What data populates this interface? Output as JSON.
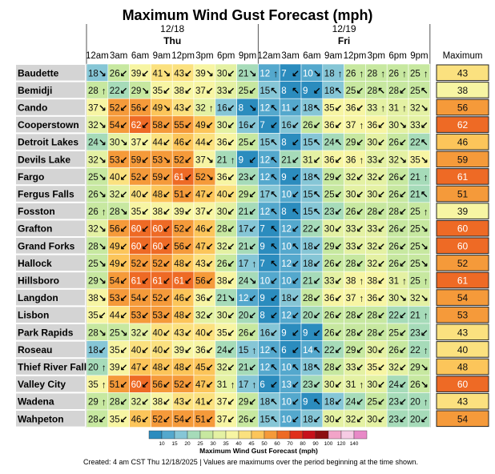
{
  "chart_data": {
    "type": "heatmap",
    "title": "Maximum Wind Gust Forecast (mph)",
    "days": [
      {
        "date": "12/18",
        "weekday": "Thu"
      },
      {
        "date": "12/19",
        "weekday": "Fri"
      }
    ],
    "times": [
      "12am",
      "3am",
      "6am",
      "9am",
      "12pm",
      "3pm",
      "6pm",
      "9pm",
      "12am",
      "3am",
      "6am",
      "9am",
      "12pm",
      "3pm",
      "6pm",
      "9pm"
    ],
    "max_header": "Maximum",
    "rows": [
      {
        "location": "Baudette",
        "values": [
          18,
          26,
          39,
          41,
          43,
          39,
          30,
          21,
          12,
          7,
          10,
          18,
          26,
          28,
          26,
          25
        ],
        "dirs": [
          "se",
          "sw",
          "sw",
          "se",
          "sw",
          "se",
          "sw",
          "se",
          "n",
          "sw",
          "se",
          "n",
          "n",
          "n",
          "n",
          "n"
        ],
        "max": 43
      },
      {
        "location": "Bemidji",
        "values": [
          28,
          22,
          29,
          35,
          38,
          37,
          33,
          25,
          15,
          8,
          9,
          18,
          25,
          28,
          28,
          25
        ],
        "dirs": [
          "n",
          "sw",
          "se",
          "sw",
          "sw",
          "sw",
          "sw",
          "sw",
          "nw",
          "nw",
          "sw",
          "nw",
          "sw",
          "nw",
          "sw",
          "nw"
        ],
        "max": 38
      },
      {
        "location": "Cando",
        "values": [
          37,
          52,
          56,
          49,
          43,
          32,
          16,
          8,
          12,
          11,
          18,
          35,
          36,
          33,
          31,
          32
        ],
        "dirs": [
          "se",
          "sw",
          "sw",
          "se",
          "sw",
          "n",
          "sw",
          "se",
          "nw",
          "sw",
          "nw",
          "sw",
          "sw",
          "n",
          "n",
          "se"
        ],
        "max": 56
      },
      {
        "location": "Cooperstown",
        "values": [
          32,
          54,
          62,
          58,
          55,
          49,
          30,
          16,
          7,
          16,
          26,
          36,
          37,
          36,
          30,
          33
        ],
        "dirs": [
          "se",
          "sw",
          "sw",
          "sw",
          "sw",
          "sw",
          "sw",
          "sw",
          "sw",
          "sw",
          "sw",
          "sw",
          "n",
          "sw",
          "se",
          "sw"
        ],
        "max": 62
      },
      {
        "location": "Detroit Lakes",
        "values": [
          24,
          30,
          37,
          44,
          46,
          44,
          36,
          25,
          15,
          8,
          15,
          24,
          29,
          30,
          26,
          22
        ],
        "dirs": [
          "se",
          "se",
          "sw",
          "sw",
          "sw",
          "sw",
          "sw",
          "sw",
          "nw",
          "sw",
          "nw",
          "nw",
          "sw",
          "sw",
          "sw",
          "nw"
        ],
        "max": 46
      },
      {
        "location": "Devils Lake",
        "values": [
          32,
          53,
          59,
          53,
          52,
          37,
          21,
          9,
          12,
          21,
          31,
          36,
          36,
          33,
          32,
          35
        ],
        "dirs": [
          "se",
          "sw",
          "sw",
          "se",
          "sw",
          "se",
          "n",
          "sw",
          "nw",
          "sw",
          "sw",
          "sw",
          "n",
          "sw",
          "se",
          "se"
        ],
        "max": 59
      },
      {
        "location": "Fargo",
        "values": [
          25,
          40,
          52,
          59,
          61,
          52,
          36,
          23,
          12,
          9,
          18,
          29,
          32,
          32,
          26,
          21
        ],
        "dirs": [
          "se",
          "sw",
          "sw",
          "sw",
          "sw",
          "se",
          "sw",
          "sw",
          "nw",
          "sw",
          "nw",
          "sw",
          "sw",
          "sw",
          "sw",
          "n"
        ],
        "max": 61
      },
      {
        "location": "Fergus Falls",
        "values": [
          26,
          32,
          40,
          48,
          51,
          47,
          40,
          29,
          17,
          10,
          15,
          25,
          30,
          30,
          26,
          21
        ],
        "dirs": [
          "se",
          "sw",
          "sw",
          "sw",
          "sw",
          "sw",
          "sw",
          "sw",
          "nw",
          "sw",
          "nw",
          "sw",
          "sw",
          "sw",
          "sw",
          "nw"
        ],
        "max": 51
      },
      {
        "location": "Fosston",
        "values": [
          26,
          28,
          35,
          38,
          39,
          37,
          30,
          21,
          12,
          8,
          15,
          23,
          26,
          28,
          28,
          25
        ],
        "dirs": [
          "n",
          "se",
          "sw",
          "sw",
          "sw",
          "sw",
          "sw",
          "sw",
          "nw",
          "nw",
          "nw",
          "sw",
          "sw",
          "sw",
          "sw",
          "n"
        ],
        "max": 39
      },
      {
        "location": "Grafton",
        "values": [
          32,
          56,
          60,
          60,
          52,
          46,
          28,
          17,
          7,
          12,
          22,
          30,
          33,
          33,
          26,
          25
        ],
        "dirs": [
          "se",
          "sw",
          "sw",
          "sw",
          "sw",
          "sw",
          "sw",
          "sw",
          "nw",
          "sw",
          "sw",
          "sw",
          "sw",
          "sw",
          "sw",
          "se"
        ],
        "max": 60
      },
      {
        "location": "Grand Forks",
        "values": [
          28,
          49,
          60,
          60,
          56,
          47,
          32,
          21,
          9,
          10,
          18,
          29,
          33,
          32,
          26,
          25
        ],
        "dirs": [
          "se",
          "sw",
          "sw",
          "sw",
          "sw",
          "sw",
          "sw",
          "sw",
          "nw",
          "nw",
          "sw",
          "sw",
          "sw",
          "sw",
          "sw",
          "se"
        ],
        "max": 60
      },
      {
        "location": "Hallock",
        "values": [
          25,
          49,
          52,
          52,
          48,
          43,
          26,
          17,
          7,
          12,
          18,
          26,
          28,
          32,
          26,
          25
        ],
        "dirs": [
          "se",
          "sw",
          "sw",
          "sw",
          "sw",
          "sw",
          "sw",
          "n",
          "nw",
          "sw",
          "sw",
          "sw",
          "sw",
          "sw",
          "sw",
          "se"
        ],
        "max": 52
      },
      {
        "location": "Hillsboro",
        "values": [
          29,
          54,
          61,
          61,
          61,
          56,
          38,
          24,
          10,
          10,
          21,
          33,
          38,
          38,
          31,
          25
        ],
        "dirs": [
          "se",
          "sw",
          "sw",
          "sw",
          "sw",
          "sw",
          "sw",
          "se",
          "sw",
          "sw",
          "sw",
          "sw",
          "n",
          "sw",
          "n",
          "n"
        ],
        "max": 61
      },
      {
        "location": "Langdon",
        "values": [
          38,
          53,
          54,
          52,
          46,
          36,
          21,
          12,
          9,
          18,
          28,
          36,
          37,
          36,
          30,
          32
        ],
        "dirs": [
          "se",
          "sw",
          "sw",
          "sw",
          "sw",
          "sw",
          "se",
          "sw",
          "sw",
          "sw",
          "sw",
          "sw",
          "n",
          "sw",
          "se",
          "se"
        ],
        "max": 54
      },
      {
        "location": "Lisbon",
        "values": [
          35,
          44,
          53,
          53,
          48,
          32,
          30,
          20,
          8,
          12,
          20,
          26,
          28,
          28,
          22,
          21
        ],
        "dirs": [
          "sw",
          "sw",
          "sw",
          "sw",
          "sw",
          "sw",
          "sw",
          "sw",
          "sw",
          "sw",
          "sw",
          "sw",
          "sw",
          "sw",
          "sw",
          "n"
        ],
        "max": 53
      },
      {
        "location": "Park Rapids",
        "values": [
          28,
          25,
          32,
          40,
          43,
          40,
          35,
          26,
          16,
          9,
          9,
          26,
          28,
          28,
          25,
          23
        ],
        "dirs": [
          "se",
          "se",
          "sw",
          "sw",
          "sw",
          "sw",
          "sw",
          "sw",
          "sw",
          "sw",
          "sw",
          "sw",
          "sw",
          "sw",
          "sw",
          "sw"
        ],
        "max": 43
      },
      {
        "location": "Roseau",
        "values": [
          18,
          35,
          40,
          40,
          39,
          36,
          24,
          15,
          12,
          6,
          14,
          22,
          29,
          30,
          26,
          22
        ],
        "dirs": [
          "sw",
          "sw",
          "sw",
          "sw",
          "sw",
          "sw",
          "sw",
          "n",
          "nw",
          "sw",
          "nw",
          "sw",
          "sw",
          "sw",
          "sw",
          "n"
        ],
        "max": 40
      },
      {
        "location": "Thief River Falls",
        "values": [
          20,
          39,
          47,
          48,
          48,
          45,
          32,
          21,
          12,
          10,
          18,
          28,
          33,
          35,
          32,
          29
        ],
        "dirs": [
          "n",
          "sw",
          "sw",
          "sw",
          "sw",
          "sw",
          "sw",
          "sw",
          "nw",
          "nw",
          "nw",
          "sw",
          "sw",
          "sw",
          "sw",
          "se"
        ],
        "max": 48
      },
      {
        "location": "Valley City",
        "values": [
          35,
          51,
          60,
          56,
          52,
          47,
          31,
          17,
          6,
          13,
          23,
          30,
          31,
          30,
          24,
          26
        ],
        "dirs": [
          "n",
          "sw",
          "sw",
          "sw",
          "sw",
          "sw",
          "n",
          "n",
          "sw",
          "sw",
          "sw",
          "sw",
          "n",
          "sw",
          "sw",
          "se"
        ],
        "max": 60
      },
      {
        "location": "Wadena",
        "values": [
          29,
          28,
          32,
          38,
          43,
          41,
          37,
          29,
          18,
          10,
          9,
          18,
          24,
          25,
          23,
          20
        ],
        "dirs": [
          "n",
          "sw",
          "sw",
          "sw",
          "sw",
          "sw",
          "sw",
          "sw",
          "nw",
          "sw",
          "nw",
          "sw",
          "sw",
          "sw",
          "sw",
          "n"
        ],
        "max": 43
      },
      {
        "location": "Wahpeton",
        "values": [
          28,
          35,
          46,
          52,
          54,
          51,
          37,
          26,
          15,
          10,
          18,
          30,
          32,
          30,
          23,
          20
        ],
        "dirs": [
          "sw",
          "sw",
          "sw",
          "sw",
          "sw",
          "sw",
          "sw",
          "sw",
          "nw",
          "sw",
          "sw",
          "sw",
          "sw",
          "sw",
          "sw",
          "sw"
        ],
        "max": 54
      }
    ],
    "colorbar": {
      "label": "Maximum Wind Gust Forecast (mph)",
      "ticks": [
        10,
        15,
        20,
        25,
        30,
        35,
        40,
        45,
        50,
        60,
        70,
        80,
        90,
        100,
        120,
        140
      ],
      "colors": [
        "#2b8cbe",
        "#54a8cd",
        "#86c6d6",
        "#a6dbb9",
        "#c7e8a0",
        "#e4f1a3",
        "#f7f5a3",
        "#fbe17f",
        "#fcc55a",
        "#f59a3a",
        "#ee6a25",
        "#e0301c",
        "#c7101b",
        "#8c0d12",
        "#f2a4c8",
        "#f6cbe4",
        "#e889c7"
      ]
    },
    "footnote": "Created: 4 am CST Thu 12/18/2025  |  Values are maximums over the period beginning at the time shown."
  }
}
